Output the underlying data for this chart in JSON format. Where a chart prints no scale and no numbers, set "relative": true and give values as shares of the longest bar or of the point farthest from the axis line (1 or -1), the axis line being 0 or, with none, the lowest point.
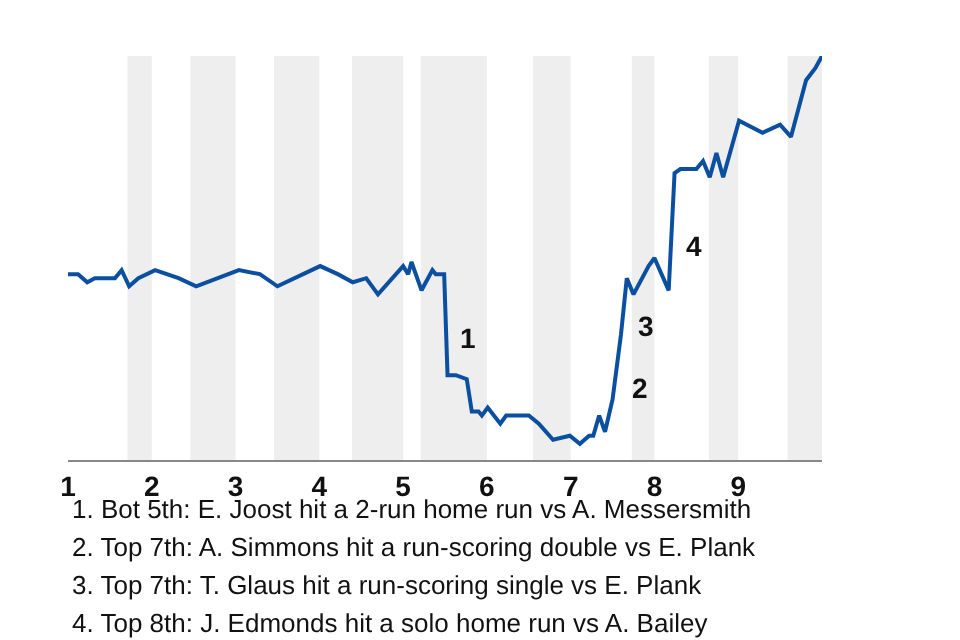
{
  "chart_data": {
    "type": "line",
    "relative": true,
    "x": [
      1,
      1.12,
      1.23,
      1.32,
      1.56,
      1.64,
      1.73,
      1.84,
      2.04,
      2.32,
      2.53,
      3.04,
      3.29,
      3.5,
      4.01,
      4.22,
      4.4,
      4.56,
      4.7,
      5,
      5.06,
      5.1,
      5.22,
      5.35,
      5.39,
      5.49,
      5.53,
      5.63,
      5.76,
      5.82,
      5.9,
      5.94,
      6.01,
      6.16,
      6.23,
      6.5,
      6.62,
      6.79,
      6.99,
      7.11,
      7.22,
      7.27,
      7.34,
      7.41,
      7.5,
      7.6,
      7.67,
      7.75,
      7.93,
      8,
      8.17,
      8.24,
      8.31,
      8.5,
      8.58,
      8.66,
      8.74,
      8.82,
      9.01,
      9.29,
      9.5,
      9.63,
      9.81,
      9.92,
      10
    ],
    "xlim": [
      1,
      10
    ],
    "xticks": [
      1,
      2,
      3,
      4,
      5,
      6,
      7,
      8,
      9
    ],
    "series": [
      {
        "color": "#0b4fa0",
        "values": [
          0.46,
          0.46,
          0.44,
          0.45,
          0.45,
          0.47,
          0.43,
          0.45,
          0.47,
          0.45,
          0.43,
          0.47,
          0.46,
          0.43,
          0.48,
          0.46,
          0.44,
          0.45,
          0.41,
          0.48,
          0.46,
          0.49,
          0.42,
          0.47,
          0.46,
          0.46,
          0.21,
          0.21,
          0.2,
          0.12,
          0.12,
          0.11,
          0.13,
          0.09,
          0.11,
          0.11,
          0.09,
          0.05,
          0.06,
          0.04,
          0.06,
          0.06,
          0.11,
          0.07,
          0.15,
          0.31,
          0.45,
          0.41,
          0.48,
          0.5,
          0.42,
          0.71,
          0.72,
          0.72,
          0.74,
          0.7,
          0.76,
          0.7,
          0.84,
          0.81,
          0.83,
          0.8,
          0.94,
          0.97,
          1.0
        ]
      }
    ],
    "bands": [
      {
        "axis": "x",
        "from": 1.71,
        "to": 2,
        "color": "#eeeeee"
      },
      {
        "axis": "x",
        "from": 2.46,
        "to": 3,
        "color": "#eeeeee"
      },
      {
        "axis": "x",
        "from": 3.46,
        "to": 4,
        "color": "#eeeeee"
      },
      {
        "axis": "x",
        "from": 4.39,
        "to": 5,
        "color": "#eeeeee"
      },
      {
        "axis": "x",
        "from": 5.21,
        "to": 6,
        "color": "#eeeeee"
      },
      {
        "axis": "x",
        "from": 6.55,
        "to": 7,
        "color": "#eeeeee"
      },
      {
        "axis": "x",
        "from": 7.73,
        "to": 8,
        "color": "#eeeeee"
      },
      {
        "axis": "x",
        "from": 8.65,
        "to": 9,
        "color": "#eeeeee"
      },
      {
        "axis": "x",
        "from": 9.59,
        "to": 10,
        "color": "#eeeeee"
      }
    ],
    "annotations": [
      {
        "text": "1",
        "x": 5.53,
        "y": 0.3
      },
      {
        "text": "2",
        "x": 7.6,
        "y": 0.18
      },
      {
        "text": "3",
        "x": 7.67,
        "y": 0.33
      },
      {
        "text": "4",
        "x": 8.24,
        "y": 0.53
      },
      "1. Bot 5th: E. Joost hit a 2-run home run vs A. Messersmith",
      "2. Top 7th: A. Simmons hit a run-scoring double vs E. Plank",
      "3. Top 7th: T. Glaus hit a run-scoring single vs E. Plank",
      "4. Top 8th: J. Edmonds hit a solo home run vs A. Bailey"
    ],
    "marker": "none",
    "line_style": "solid"
  }
}
